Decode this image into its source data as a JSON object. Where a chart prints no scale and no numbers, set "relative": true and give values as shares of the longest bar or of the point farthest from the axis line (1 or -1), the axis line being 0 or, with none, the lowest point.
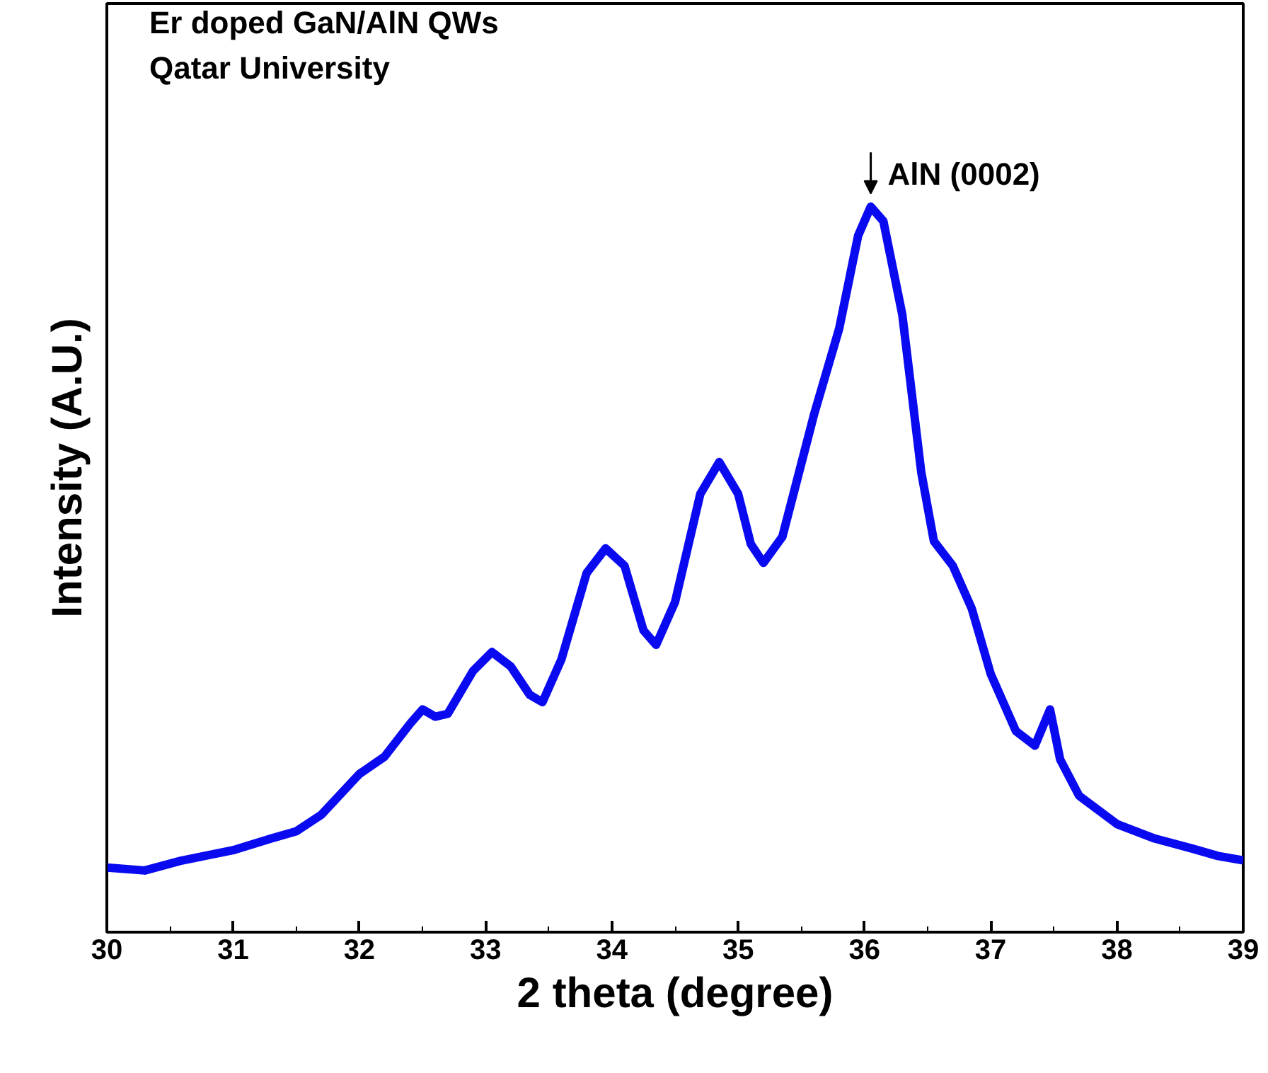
{
  "chart_data": {
    "type": "line",
    "relative": true,
    "xlabel": "2 theta (degree)",
    "ylabel": "Intensity (A.U.)",
    "xlim": [
      30,
      39
    ],
    "xticks": [
      30,
      31,
      32,
      33,
      34,
      35,
      36,
      37,
      38,
      39
    ],
    "grid": false,
    "line_style": "solid",
    "annotations": [
      "Er doped GaN/AlN QWs",
      "Qatar University",
      {
        "text": "AlN (0002)",
        "x": 36.05,
        "y": 1.0
      }
    ],
    "x": [
      30.0,
      30.3,
      30.6,
      31.0,
      31.3,
      31.5,
      31.7,
      32.0,
      32.2,
      32.4,
      32.5,
      32.6,
      32.7,
      32.9,
      33.05,
      33.2,
      33.35,
      33.45,
      33.6,
      33.8,
      33.95,
      34.1,
      34.25,
      34.35,
      34.5,
      34.7,
      34.85,
      35.0,
      35.1,
      35.2,
      35.35,
      35.6,
      35.8,
      35.95,
      36.05,
      36.15,
      36.3,
      36.45,
      36.55,
      36.7,
      36.85,
      37.0,
      37.2,
      37.35,
      37.47,
      37.55,
      37.7,
      38.0,
      38.3,
      38.6,
      38.8,
      39.0
    ],
    "series": [
      {
        "color": "#0a0af0",
        "values": [
          0.089,
          0.085,
          0.099,
          0.113,
          0.129,
          0.139,
          0.162,
          0.218,
          0.242,
          0.287,
          0.307,
          0.297,
          0.301,
          0.36,
          0.386,
          0.366,
          0.327,
          0.317,
          0.376,
          0.495,
          0.529,
          0.505,
          0.416,
          0.396,
          0.455,
          0.604,
          0.648,
          0.604,
          0.535,
          0.509,
          0.545,
          0.713,
          0.832,
          0.96,
          1.0,
          0.98,
          0.851,
          0.634,
          0.539,
          0.505,
          0.446,
          0.356,
          0.277,
          0.257,
          0.307,
          0.238,
          0.188,
          0.149,
          0.129,
          0.115,
          0.105,
          0.099
        ]
      }
    ]
  }
}
